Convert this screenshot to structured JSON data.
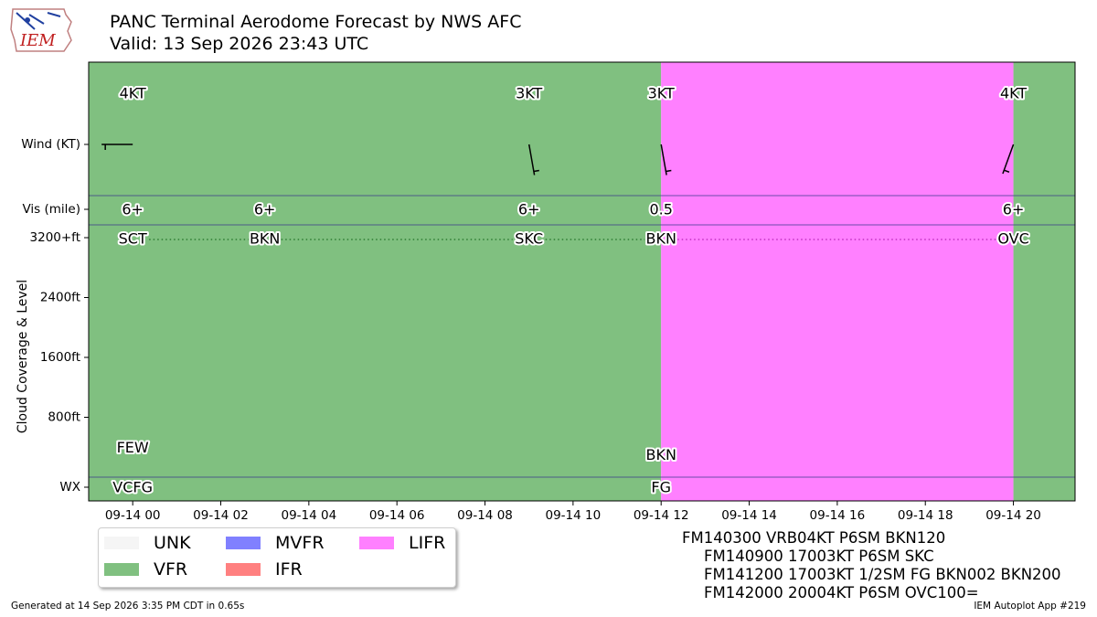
{
  "header": {
    "title_line1": "PANC Terminal Aerodome Forecast by NWS AFC",
    "title_line2": "Valid: 13 Sep 2026 23:43 UTC",
    "logo_text": "IEM"
  },
  "chart_data": {
    "type": "area",
    "x_unit": "hours after 2026-09-14 00:00 UTC",
    "xlim": [
      -1,
      21.4
    ],
    "x_ticks": [
      {
        "x": 0,
        "label": "09-14 00"
      },
      {
        "x": 2,
        "label": "09-14 02"
      },
      {
        "x": 4,
        "label": "09-14 04"
      },
      {
        "x": 6,
        "label": "09-14 06"
      },
      {
        "x": 8,
        "label": "09-14 08"
      },
      {
        "x": 10,
        "label": "09-14 10"
      },
      {
        "x": 12,
        "label": "09-14 12"
      },
      {
        "x": 14,
        "label": "09-14 14"
      },
      {
        "x": 16,
        "label": "09-14 16"
      },
      {
        "x": 18,
        "label": "09-14 18"
      },
      {
        "x": 20,
        "label": "09-14 20"
      }
    ],
    "y_ticks": [
      {
        "level": 3200,
        "label": "3200+ft"
      },
      {
        "level": 2400,
        "label": "2400ft"
      },
      {
        "level": 1600,
        "label": "1600ft"
      },
      {
        "level": 800,
        "label": "800ft"
      }
    ],
    "ylabel": "Cloud Coverage & Level",
    "row_labels": {
      "wind": "Wind (KT)",
      "vis": "Vis (mile)",
      "wx": "WX"
    },
    "categories": [
      {
        "name": "VFR",
        "from": -1,
        "to": 12,
        "color": "#80C080"
      },
      {
        "name": "LIFR",
        "from": 12,
        "to": 20,
        "color": "#FF80FF"
      },
      {
        "name": "VFR",
        "from": 20,
        "to": 21.4,
        "color": "#80C080"
      }
    ],
    "wind": [
      {
        "x": 0,
        "label": "4KT",
        "direction": 270
      },
      {
        "x": 9,
        "label": "3KT",
        "direction": 170
      },
      {
        "x": 12,
        "label": "3KT",
        "direction": 170
      },
      {
        "x": 20,
        "label": "4KT",
        "direction": 200
      }
    ],
    "visibility": [
      {
        "x": 0,
        "label": "6+"
      },
      {
        "x": 3,
        "label": "6+"
      },
      {
        "x": 9,
        "label": "6+"
      },
      {
        "x": 12,
        "label": "0.5"
      },
      {
        "x": 20,
        "label": "6+"
      }
    ],
    "cloud_high": [
      {
        "x": 0,
        "label": "SCT"
      },
      {
        "x": 3,
        "label": "BKN"
      },
      {
        "x": 9,
        "label": "SKC"
      },
      {
        "x": 12,
        "label": "BKN"
      },
      {
        "x": 20,
        "label": "OVC"
      }
    ],
    "cloud_low": [
      {
        "x": 0,
        "level": 300,
        "label": "FEW"
      },
      {
        "x": 12,
        "level": 200,
        "label": "BKN"
      }
    ],
    "weather": [
      {
        "x": 0,
        "label": "VCFG"
      },
      {
        "x": 12,
        "label": "FG"
      }
    ]
  },
  "legend": {
    "items": [
      {
        "label": "UNK",
        "color": "#F5F5F5"
      },
      {
        "label": "VFR",
        "color": "#80C080"
      },
      {
        "label": "MVFR",
        "color": "#8080FF"
      },
      {
        "label": "IFR",
        "color": "#FF8080"
      },
      {
        "label": "LIFR",
        "color": "#FF80FF"
      }
    ]
  },
  "taf": {
    "lines": [
      "FM140300 VRB04KT P6SM BKN120",
      "FM140900 17003KT P6SM SKC",
      "FM141200 17003KT 1/2SM FG BKN002 BKN200",
      "FM142000 20004KT P6SM OVC100="
    ]
  },
  "footer": {
    "generated": "Generated at 14 Sep 2026 3:35 PM CDT in 0.65s",
    "app": "IEM Autoplot App #219"
  }
}
